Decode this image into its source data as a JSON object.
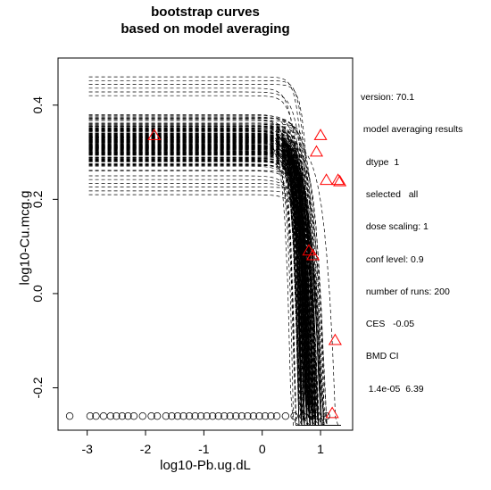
{
  "chart_data": {
    "type": "line",
    "title": "bootstrap curves",
    "subtitle": "based on model averaging",
    "xlabel": "log10-Pb.ug.dL",
    "ylabel": "log10-Cu.mcg.g",
    "xlim": [
      -3.5,
      1.55
    ],
    "ylim": [
      -0.29,
      0.5
    ],
    "xticks": [
      -3,
      -2,
      -1,
      0,
      1
    ],
    "yticks": [
      -0.2,
      0.0,
      0.2,
      0.4
    ],
    "grid": false,
    "legend": "none",
    "n_curves": 200,
    "curves_model": {
      "form": "exponential",
      "ces": -0.05,
      "bmd_ci": [
        1.4e-05,
        6.39
      ],
      "background_range": [
        0.21,
        0.46
      ],
      "x_start": -2.97,
      "x_end": 1.35
    },
    "data_points": [
      {
        "x": -1.85,
        "y": 0.335
      },
      {
        "x": 1.0,
        "y": 0.335
      },
      {
        "x": 0.93,
        "y": 0.3
      },
      {
        "x": 1.1,
        "y": 0.24
      },
      {
        "x": 1.3,
        "y": 0.24
      },
      {
        "x": 1.33,
        "y": 0.237
      },
      {
        "x": 0.8,
        "y": 0.09
      },
      {
        "x": 0.87,
        "y": 0.08
      },
      {
        "x": 1.25,
        "y": -0.1
      },
      {
        "x": 1.2,
        "y": -0.255
      }
    ],
    "marker_color": "#ff0000",
    "dose_zero_points": {
      "y": -0.26,
      "x": [
        -3.3,
        -2.95,
        -2.85,
        -2.72,
        -2.6,
        -2.5,
        -2.4,
        -2.3,
        -2.2,
        -2.05,
        -1.9,
        -1.8,
        -1.65,
        -1.55,
        -1.45,
        -1.35,
        -1.25,
        -1.15,
        -1.05,
        -0.95,
        -0.85,
        -0.75,
        -0.65,
        -0.55,
        -0.45,
        -0.35,
        -0.25,
        -0.15,
        -0.05,
        0.05,
        0.15,
        0.25,
        0.4,
        0.55,
        0.7,
        0.85,
        0.95,
        1.1
      ]
    }
  },
  "info_lines": [
    "version: 70.1",
    " model averaging results",
    "  dtype  1",
    "  selected   all",
    "  dose scaling: 1",
    "  conf level: 0.9",
    "  number of runs: 200",
    "  CES   -0.05",
    "  BMD CI",
    "   1.4e-05  6.39"
  ]
}
